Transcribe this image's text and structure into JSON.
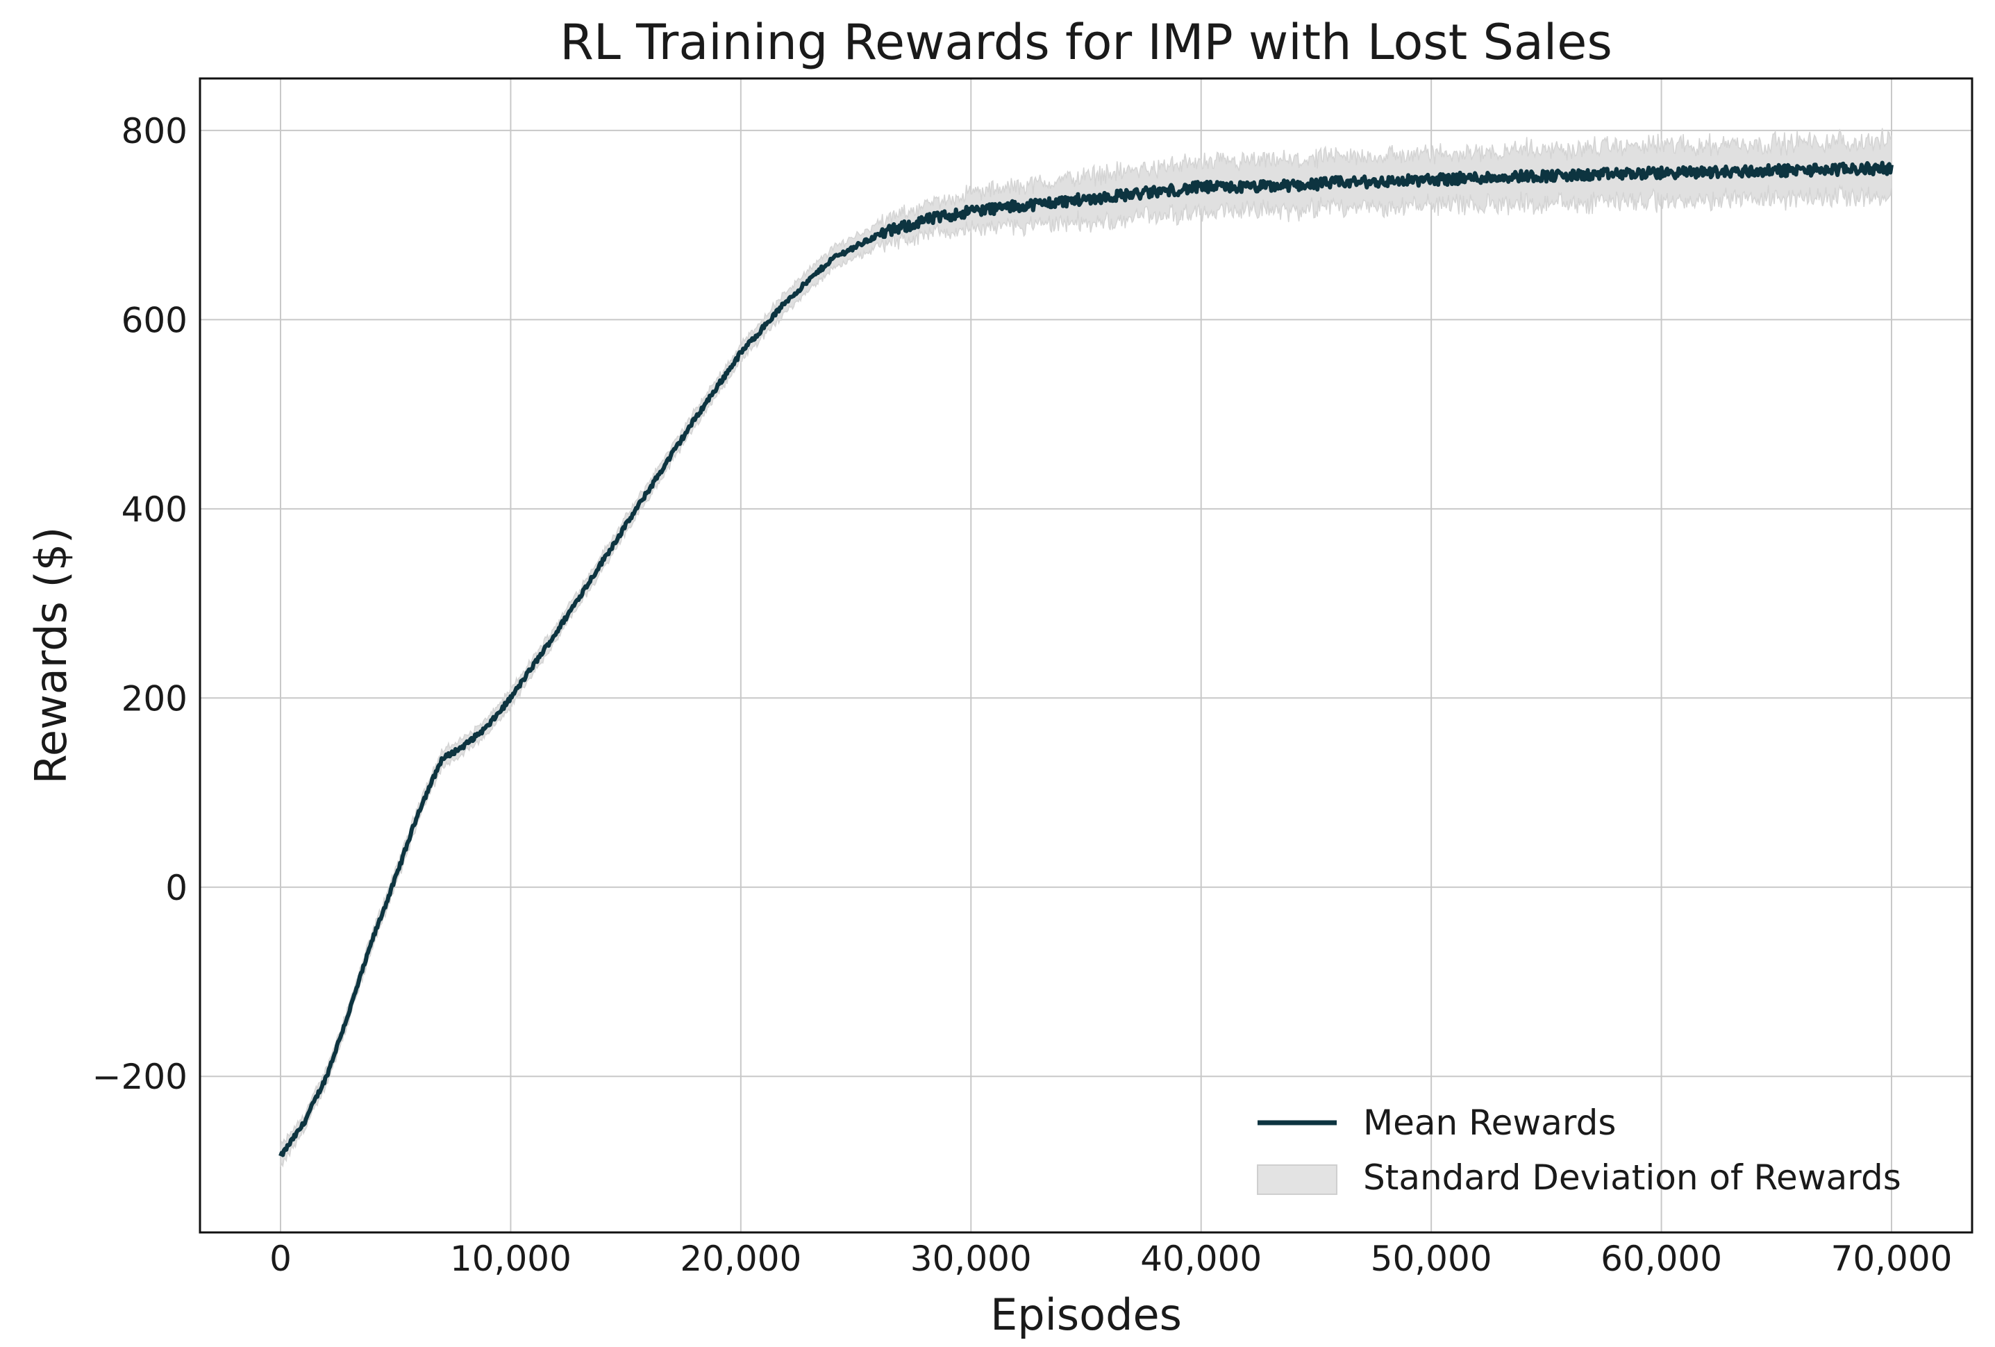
{
  "chart_data": {
    "type": "line",
    "title": "RL Training Rewards for IMP with Lost Sales",
    "xlabel": "Episodes",
    "ylabel": "Rewards ($)",
    "xlim": [
      -3500,
      73500
    ],
    "ylim": [
      -365,
      855
    ],
    "xticks": [
      0,
      10000,
      20000,
      30000,
      40000,
      50000,
      60000,
      70000
    ],
    "xtick_labels": [
      "0",
      "10,000",
      "20,000",
      "30,000",
      "40,000",
      "50,000",
      "60,000",
      "70,000"
    ],
    "yticks": [
      -200,
      0,
      200,
      400,
      600,
      800
    ],
    "ytick_labels": [
      "−200",
      "0",
      "200",
      "400",
      "600",
      "800"
    ],
    "grid": true,
    "legend_position": "lower-right",
    "series": [
      {
        "name": "Mean Rewards",
        "kind": "line",
        "color": "#0d3440",
        "x": [
          0,
          1000,
          2000,
          3000,
          4000,
          5000,
          6000,
          7000,
          8000,
          9000,
          10000,
          12000,
          14000,
          16000,
          18000,
          20000,
          22000,
          24000,
          26000,
          28000,
          30000,
          32000,
          34000,
          36000,
          38000,
          40000,
          42000,
          44000,
          46000,
          48000,
          50000,
          52000,
          54000,
          56000,
          58000,
          60000,
          62000,
          64000,
          66000,
          68000,
          70000
        ],
        "y": [
          -285,
          -250,
          -200,
          -130,
          -55,
          10,
          80,
          135,
          150,
          170,
          200,
          270,
          345,
          420,
          495,
          565,
          620,
          665,
          690,
          705,
          715,
          720,
          725,
          730,
          735,
          740,
          740,
          742,
          745,
          746,
          748,
          750,
          752,
          752,
          754,
          755,
          756,
          757,
          758,
          759,
          760
        ]
      },
      {
        "name": "Standard Deviation of Rewards",
        "kind": "band",
        "color": "#d9d9d9",
        "x": [
          0,
          1000,
          2000,
          3000,
          4000,
          5000,
          6000,
          7000,
          8000,
          9000,
          10000,
          12000,
          14000,
          16000,
          18000,
          20000,
          22000,
          24000,
          26000,
          28000,
          30000,
          32000,
          34000,
          36000,
          38000,
          40000,
          42000,
          44000,
          46000,
          48000,
          50000,
          52000,
          54000,
          56000,
          58000,
          60000,
          62000,
          64000,
          66000,
          68000,
          70000
        ],
        "std": [
          10,
          8,
          8,
          8,
          8,
          8,
          8,
          8,
          8,
          8,
          8,
          8,
          8,
          8,
          8,
          8,
          10,
          10,
          12,
          15,
          18,
          20,
          22,
          24,
          24,
          25,
          25,
          25,
          25,
          26,
          26,
          26,
          27,
          27,
          28,
          28,
          28,
          28,
          28,
          28,
          28
        ]
      }
    ]
  }
}
